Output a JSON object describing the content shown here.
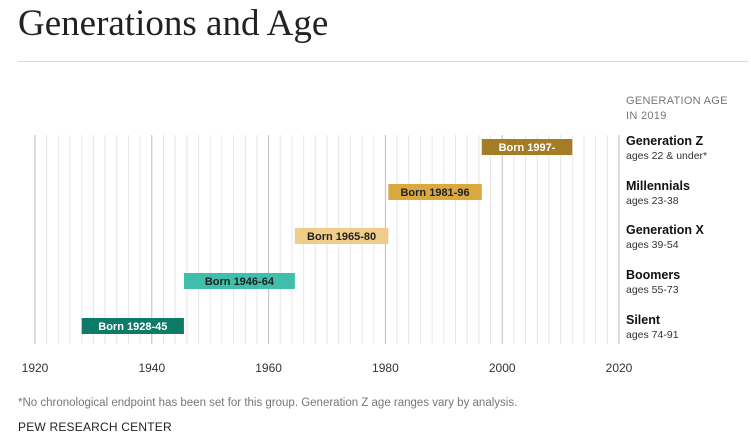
{
  "title": "Generations and Age",
  "note": "*No chronological endpoint has been set for this group. Generation Z age ranges vary by analysis.",
  "source": "PEW RESEARCH CENTER",
  "chart_data": {
    "type": "bar",
    "orientation": "horizontal-range",
    "title": "Generations and Age",
    "legend_header": [
      "GENERATION AGE",
      "IN 2019"
    ],
    "xlim": [
      1920,
      2020
    ],
    "x_ticks": [
      1920,
      1940,
      1960,
      1980,
      2000,
      2020
    ],
    "grid": true,
    "series": [
      {
        "name": "Generation Z",
        "age": "ages 22 & under*",
        "label": "Born 1997-",
        "start": 1996.5,
        "end": 2012,
        "color": "#a57c26",
        "text_color": "#ffffff"
      },
      {
        "name": "Millennials",
        "age": "ages 23-38",
        "label": "Born 1981-96",
        "start": 1980.5,
        "end": 1996.5,
        "color": "#d9a93f",
        "text_color": "#222222"
      },
      {
        "name": "Generation X",
        "age": "ages 39-54",
        "label": "Born 1965-80",
        "start": 1964.5,
        "end": 1980.5,
        "color": "#f0cc8a",
        "text_color": "#222222"
      },
      {
        "name": "Boomers",
        "age": "ages 55-73",
        "label": "Born 1946-64",
        "start": 1945.5,
        "end": 1964.5,
        "color": "#3fbfab",
        "text_color": "#222222"
      },
      {
        "name": "Silent",
        "age": "ages 74-91",
        "label": "Born 1928-45",
        "start": 1928,
        "end": 1945.5,
        "color": "#0e7a68",
        "text_color": "#ffffff"
      }
    ]
  }
}
